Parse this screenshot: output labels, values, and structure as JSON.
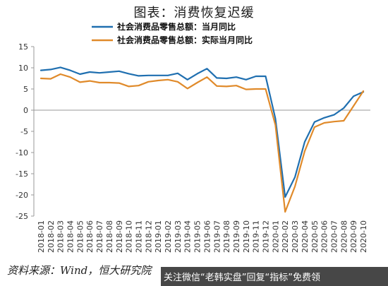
{
  "page_title": "图表：消费恢复迟缓",
  "source_note": "资料来源：Wind，恒大研究院",
  "watermark": "关注微信“老韩实盘”回复“指标”免费领",
  "chart_data": {
    "type": "line",
    "title": "",
    "xlabel": "",
    "ylabel": "",
    "ylim": [
      -25,
      15
    ],
    "yticks": [
      15,
      10,
      5,
      0,
      -5,
      -10,
      -15,
      -20,
      -25
    ],
    "grid": false,
    "legend_position": "top",
    "categories": [
      "2018-01",
      "2018-02",
      "2018-03",
      "2018-04",
      "2018-05",
      "2018-06",
      "2018-07",
      "2018-08",
      "2018-09",
      "2018-10",
      "2018-11",
      "2018-12",
      "2019-01",
      "2019-02",
      "2019-03",
      "2019-04",
      "2019-05",
      "2019-06",
      "2019-07",
      "2019-08",
      "2019-09",
      "2019-10",
      "2019-11",
      "2019-12",
      "2020-01",
      "2020-02",
      "2020-03",
      "2020-04",
      "2020-05",
      "2020-06",
      "2020-07",
      "2020-08",
      "2020-09",
      "2020-10"
    ],
    "series": [
      {
        "name": "社会消费品零售总额：当月同比",
        "color": "#1f6fb0",
        "values": [
          9.4,
          9.6,
          10.1,
          9.4,
          8.5,
          9.0,
          8.8,
          9.0,
          9.2,
          8.6,
          8.1,
          8.2,
          8.2,
          8.2,
          8.7,
          7.2,
          8.6,
          9.8,
          7.6,
          7.5,
          7.8,
          7.2,
          8.0,
          8.0,
          -2.0,
          -20.5,
          -15.8,
          -7.5,
          -2.8,
          -1.8,
          -1.1,
          0.5,
          3.3,
          4.3
        ]
      },
      {
        "name": "社会消费品零售总额：实际当月同比",
        "color": "#e08a2a",
        "values": [
          7.5,
          7.4,
          8.5,
          7.8,
          6.6,
          6.9,
          6.5,
          6.5,
          6.4,
          5.6,
          5.8,
          6.7,
          7.0,
          7.2,
          6.7,
          5.1,
          6.5,
          7.8,
          5.7,
          5.6,
          5.8,
          4.9,
          5.0,
          5.0,
          -3.5,
          -24.0,
          -18.0,
          -9.7,
          -4.0,
          -3.0,
          -2.7,
          -2.5,
          1.0,
          4.5
        ]
      }
    ]
  }
}
